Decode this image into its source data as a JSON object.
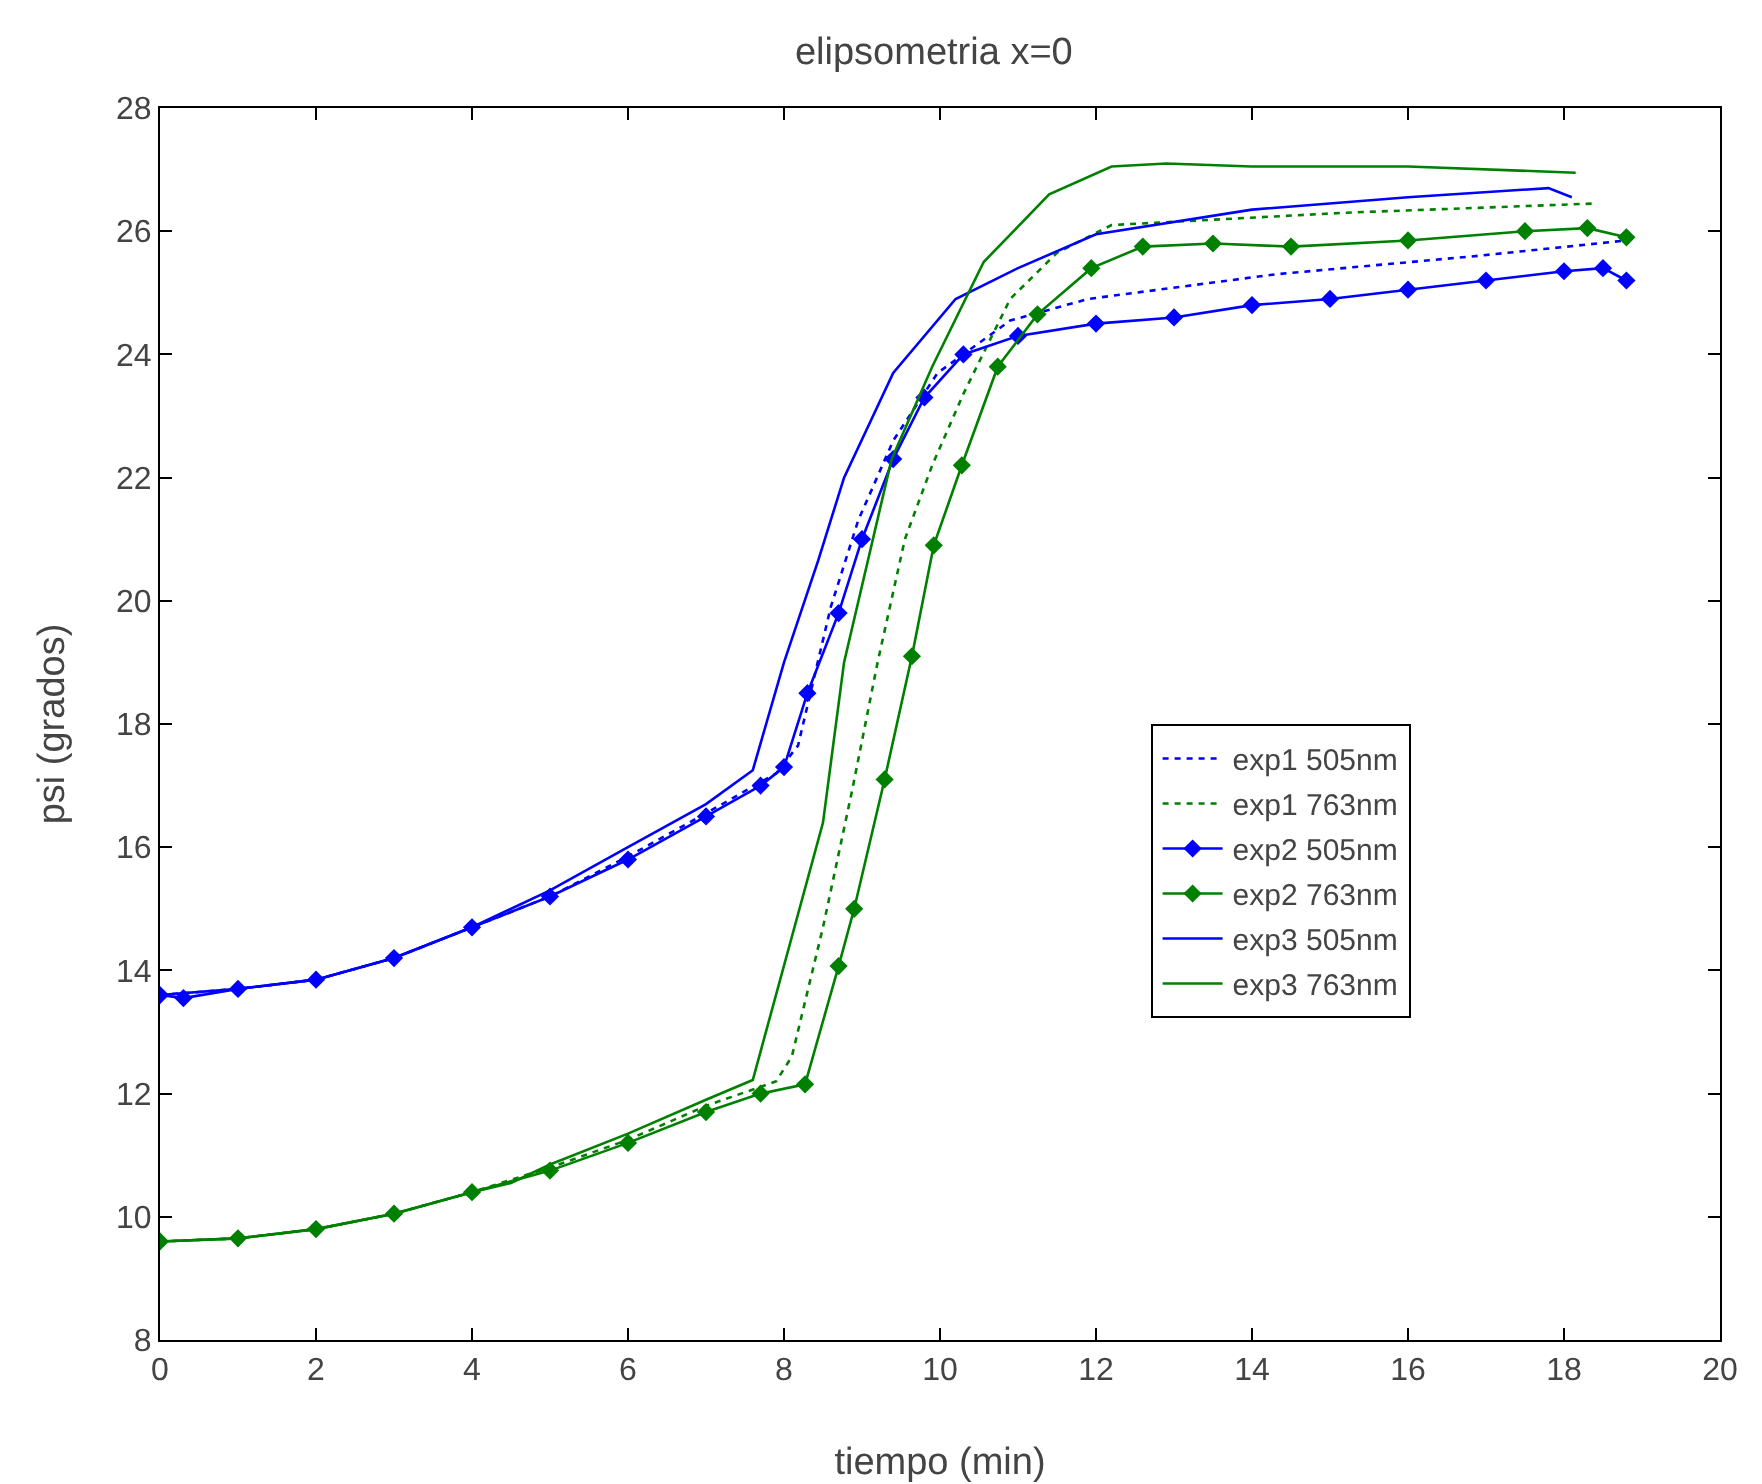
{
  "chart_data": {
    "type": "line",
    "title": "elipsometria x=0",
    "xlabel": "tiempo (min)",
    "ylabel": "psi (grados)",
    "xlim": [
      0,
      20
    ],
    "xticks": [
      0,
      2,
      4,
      6,
      8,
      10,
      12,
      14,
      16,
      18,
      20
    ],
    "ylim": [
      8,
      28
    ],
    "yticks": [
      8,
      10,
      12,
      14,
      16,
      18,
      20,
      22,
      24,
      26,
      28
    ],
    "grid": false,
    "legend": "right",
    "series": [
      {
        "name": "exp1 505nm",
        "color": "#0000ff",
        "line_style": "dotted",
        "marker": "none",
        "x": [
          0,
          1,
          2,
          3,
          4,
          5,
          6,
          7,
          7.9,
          8.18,
          8.6,
          8.95,
          9.4,
          9.97,
          10.9,
          11.9,
          14.3,
          16.9,
          18.8
        ],
        "values": [
          13.6,
          13.7,
          13.85,
          14.2,
          14.7,
          15.2,
          15.85,
          16.55,
          17.2,
          17.65,
          19.9,
          21.3,
          22.6,
          23.7,
          24.55,
          24.9,
          25.3,
          25.6,
          25.85
        ]
      },
      {
        "name": "exp1 763nm",
        "color": "#008000",
        "line_style": "dotted",
        "marker": "none",
        "x": [
          0,
          1,
          2,
          3,
          4,
          5,
          6,
          7,
          7.9,
          8.1,
          8.5,
          8.87,
          9.2,
          9.55,
          9.9,
          10.3,
          10.9,
          11.5,
          12.2,
          15.2,
          18.4
        ],
        "values": [
          9.6,
          9.65,
          9.8,
          10.05,
          10.4,
          10.8,
          11.25,
          11.8,
          12.2,
          12.6,
          14.7,
          16.9,
          19.0,
          21.0,
          22.2,
          23.36,
          24.9,
          25.65,
          26.1,
          26.3,
          26.45
        ]
      },
      {
        "name": "exp2 505nm",
        "color": "#0000ff",
        "line_style": "solid",
        "marker": "diamond",
        "x": [
          0,
          0.3,
          1,
          2,
          3,
          4,
          5,
          6,
          7,
          7.7,
          8.0,
          8.3,
          8.7,
          9.0,
          9.4,
          9.8,
          10.3,
          11,
          12,
          13,
          14,
          15,
          16,
          17,
          18,
          18.5,
          18.8
        ],
        "values": [
          13.6,
          13.55,
          13.7,
          13.85,
          14.2,
          14.7,
          15.2,
          15.8,
          16.5,
          17.0,
          17.3,
          18.5,
          19.8,
          21.0,
          22.3,
          23.3,
          24.0,
          24.3,
          24.5,
          24.6,
          24.8,
          24.9,
          25.05,
          25.2,
          25.35,
          25.4,
          25.2
        ]
      },
      {
        "name": "exp2 763nm",
        "color": "#008000",
        "line_style": "solid",
        "marker": "diamond",
        "x": [
          0,
          1,
          2,
          3,
          4,
          5,
          6,
          7,
          7.7,
          8.27,
          8.7,
          8.9,
          9.29,
          9.64,
          9.92,
          10.28,
          10.74,
          11.25,
          11.94,
          12.6,
          13.5,
          14.5,
          16,
          17.5,
          18.3,
          18.8
        ],
        "values": [
          9.6,
          9.65,
          9.8,
          10.05,
          10.4,
          10.75,
          11.2,
          11.7,
          12.0,
          12.15,
          14.07,
          15.0,
          17.1,
          19.1,
          20.9,
          22.2,
          23.8,
          24.65,
          25.4,
          25.75,
          25.8,
          25.75,
          25.85,
          26.0,
          26.05,
          25.9
        ]
      },
      {
        "name": "exp3 505nm",
        "color": "#0000ff",
        "line_style": "solid",
        "marker": "none",
        "x": [
          0,
          1,
          2,
          3,
          4,
          5,
          6,
          7,
          7.6,
          8.0,
          8.44,
          8.77,
          9.4,
          10.2,
          11,
          12,
          14,
          16,
          17.8,
          18.1
        ],
        "values": [
          13.6,
          13.7,
          13.85,
          14.2,
          14.7,
          15.3,
          16.0,
          16.7,
          17.25,
          19.0,
          20.66,
          22.0,
          23.7,
          24.9,
          25.4,
          25.95,
          26.35,
          26.55,
          26.7,
          26.55
        ]
      },
      {
        "name": "exp3 763nm",
        "color": "#008000",
        "line_style": "solid",
        "marker": "none",
        "x": [
          0,
          1,
          2,
          3,
          4,
          4.5,
          5,
          6,
          7,
          7.6,
          8.5,
          8.77,
          9.38,
          9.9,
          10.56,
          11.4,
          12.2,
          12.9,
          14,
          16,
          18.15
        ],
        "values": [
          9.6,
          9.65,
          9.8,
          10.05,
          10.4,
          10.55,
          10.85,
          11.35,
          11.9,
          12.22,
          16.4,
          19.0,
          22.3,
          23.8,
          25.5,
          26.6,
          27.05,
          27.1,
          27.05,
          27.05,
          26.95
        ]
      }
    ]
  }
}
